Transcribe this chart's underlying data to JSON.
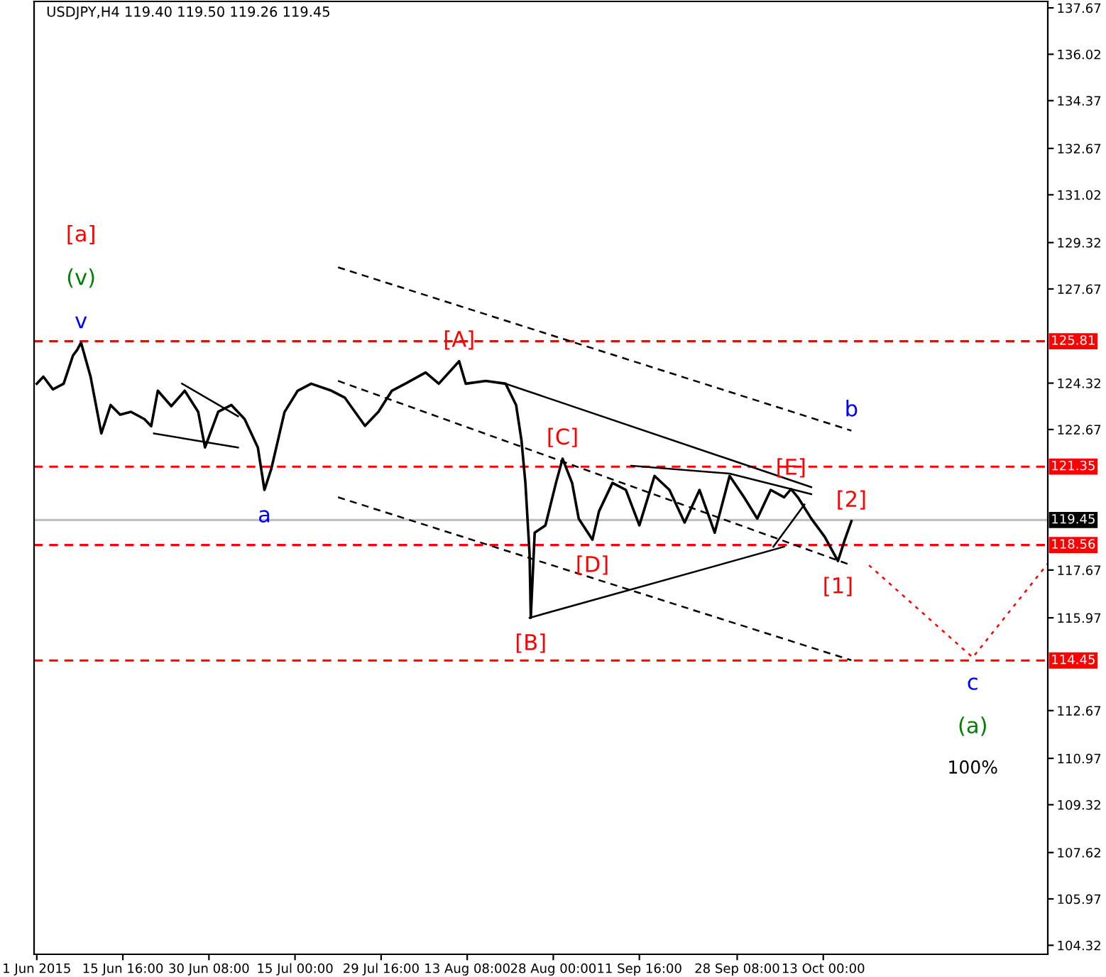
{
  "chart_data": {
    "type": "line",
    "title": "USDJPY,H4 119.40 119.50 119.26 119.45",
    "x": [
      "2015-06-01T00:00",
      "2015-06-02T03:00",
      "2015-06-03T18:00",
      "2015-06-05T14:00",
      "2015-06-07T04:00",
      "2015-06-07T21:00",
      "2015-06-08T13:00",
      "2015-06-10T04:00",
      "2015-06-12T00:00",
      "2015-06-13T14:00",
      "2015-06-15T05:00",
      "2015-06-17T01:00",
      "2015-06-19T08:00",
      "2015-06-20T12:00",
      "2015-06-21T15:00",
      "2015-06-23T22:00",
      "2015-06-26T05:00",
      "2015-06-28T12:00",
      "2015-06-29T16:00",
      "2015-07-01T22:00",
      "2015-07-04T04:00",
      "2015-07-06T10:00",
      "2015-07-08T16:00",
      "2015-07-09T19:00",
      "2015-07-10T23:00",
      "2015-07-13T05:00",
      "2015-07-15T11:00",
      "2015-07-17T18:00",
      "2015-07-21T05:00",
      "2015-07-23T12:00",
      "2015-07-26T22:00",
      "2015-07-29T05:00",
      "2015-07-31T12:00",
      "2015-08-02T19:00",
      "2015-08-06T06:00",
      "2015-08-08T12:00",
      "2015-08-11T23:00",
      "2015-08-13T02:00",
      "2015-08-16T12:00",
      "2015-08-19T21:00",
      "2015-08-21T16:00",
      "2015-08-22T14:00",
      "2015-08-23T06:00",
      "2015-08-23T23:00",
      "2015-08-24T04:00",
      "2015-08-24T20:00",
      "2015-08-26T16:00",
      "2015-08-28T11:00",
      "2015-08-29T14:00",
      "2015-08-31T05:00",
      "2015-09-01T08:00",
      "2015-09-03T16:00",
      "2015-09-04T19:00",
      "2015-09-07T02:00",
      "2015-09-09T09:00",
      "2015-09-11T16:00",
      "2015-09-14T06:00",
      "2015-09-16T19:00",
      "2015-09-19T09:00",
      "2015-09-21T22:00",
      "2015-09-24T12:00",
      "2015-09-27T01:00",
      "2015-09-29T12:00",
      "2015-10-01T18:00",
      "2015-10-04T01:00",
      "2015-10-06T08:00",
      "2015-10-07T12:00",
      "2015-10-08T16:00",
      "2015-10-10T23:00",
      "2015-10-13T06:00",
      "2015-10-15T12:00",
      "2015-10-16T16:00",
      "2015-10-17T19:00"
    ],
    "series": [
      {
        "color": "#000000",
        "values": [
          124.3,
          124.55,
          124.1,
          124.3,
          125.3,
          125.5,
          125.76,
          124.55,
          122.53,
          123.54,
          123.2,
          123.3,
          123.04,
          122.79,
          124.05,
          123.5,
          124.05,
          123.3,
          122.03,
          123.3,
          123.54,
          123.04,
          122.03,
          120.52,
          121.27,
          123.29,
          124.05,
          124.3,
          124.05,
          123.8,
          122.8,
          123.3,
          124.05,
          124.3,
          124.7,
          124.3,
          125.1,
          124.3,
          124.4,
          124.3,
          123.54,
          122.28,
          120.77,
          118.25,
          115.97,
          119.0,
          119.26,
          120.77,
          121.63,
          120.77,
          119.5,
          118.75,
          119.76,
          120.77,
          120.52,
          119.26,
          121.02,
          120.52,
          119.36,
          120.52,
          119.0,
          121.02,
          120.26,
          119.5,
          120.52,
          120.26,
          120.55,
          120.26,
          119.5,
          118.85,
          117.99,
          118.75,
          119.41
        ]
      },
      {
        "x": [
          "2015-07-22T08:00",
          "2015-10-17T19:00"
        ],
        "color": "#000000",
        "line_style": "dashed",
        "values": [
          128.44,
          122.63
        ]
      },
      {
        "x": [
          "2015-07-22T08:00",
          "2015-10-17T19:00"
        ],
        "color": "#000000",
        "line_style": "dashed",
        "values": [
          124.4,
          117.84
        ]
      },
      {
        "x": [
          "2015-07-22T08:00",
          "2015-10-17T19:00"
        ],
        "color": "#000000",
        "line_style": "dashed",
        "values": [
          120.26,
          114.46
        ]
      },
      {
        "x": [
          "2015-08-19T21:00",
          "2015-10-10T23:00"
        ],
        "color": "#000000",
        "line_style": "solid",
        "values": [
          124.3,
          120.62
        ]
      },
      {
        "x": [
          "2015-08-23T23:00",
          "2015-10-06T08:00"
        ],
        "color": "#000000",
        "line_style": "solid",
        "values": [
          115.97,
          118.5
        ]
      },
      {
        "x": [
          "2015-09-10T07:00",
          "2015-09-27T01:00",
          "2015-10-10T23:00"
        ],
        "color": "#000000",
        "line_style": "solid",
        "values": [
          121.38,
          121.1,
          120.37
        ]
      },
      {
        "x": [
          "2015-06-25T18:00",
          "2015-07-05T07:00"
        ],
        "color": "#000000",
        "line_style": "solid",
        "values": [
          124.3,
          123.14
        ]
      },
      {
        "x": [
          "2015-06-20T23:00",
          "2015-07-05T07:00"
        ],
        "color": "#000000",
        "line_style": "solid",
        "values": [
          122.53,
          122.03
        ]
      },
      {
        "x": [
          "2015-10-04T12:00",
          "2015-10-09T19:00"
        ],
        "color": "#000000",
        "line_style": "solid",
        "values": [
          118.5,
          120.0
        ]
      },
      {
        "x": [
          "2015-10-20T19:00",
          "2015-11-07T11:00",
          "2015-11-20T06:00"
        ],
        "color": "#ff0000",
        "line_style": "dotted",
        "values": [
          117.84,
          114.56,
          117.9
        ]
      }
    ],
    "xlim": [
      "2015-05-31T13:00",
      "2015-11-20T06:00"
    ],
    "xticks": [
      {
        "value": "2015-06-01",
        "label": "1 Jun 2015"
      },
      {
        "value": "2015-06-15T16:00",
        "label": "15 Jun 16:00"
      },
      {
        "value": "2015-06-30T08:00",
        "label": "30 Jun 08:00"
      },
      {
        "value": "2015-07-15",
        "label": "15 Jul 00:00"
      },
      {
        "value": "2015-07-29T16:00",
        "label": "29 Jul 16:00"
      },
      {
        "value": "2015-08-13T08:00",
        "label": "13 Aug 08:00"
      },
      {
        "value": "2015-08-28",
        "label": "28 Aug 00:00"
      },
      {
        "value": "2015-09-11T16:00",
        "label": "11 Sep 16:00"
      },
      {
        "value": "2015-09-28T08:00",
        "label": "28 Sep 08:00"
      },
      {
        "value": "2015-10-13",
        "label": "13 Oct 00:00"
      }
    ],
    "ylim": [
      104.0,
      137.9
    ],
    "yticks": [
      137.67,
      136.02,
      134.37,
      132.67,
      131.02,
      129.32,
      127.67,
      124.32,
      122.67,
      117.67,
      115.97,
      112.67,
      110.97,
      109.32,
      107.62,
      105.97,
      104.32
    ],
    "ref_lines": [
      {
        "axis": "y",
        "value": 125.81,
        "label": "125.81",
        "color": "#ff0000",
        "line_style": "dashed"
      },
      {
        "axis": "y",
        "value": 121.35,
        "label": "121.35",
        "color": "#ff0000",
        "line_style": "dashed"
      },
      {
        "axis": "y",
        "value": 119.45,
        "label": "119.45",
        "color": "#c0c0c0",
        "line_style": "solid"
      },
      {
        "axis": "y",
        "value": 118.56,
        "label": "118.56",
        "color": "#ff0000",
        "line_style": "dashed"
      },
      {
        "axis": "y",
        "value": 114.45,
        "label": "114.45",
        "color": "#ff0000",
        "line_style": "dashed"
      }
    ],
    "annotations": [
      {
        "text": "v",
        "x": "2015-06-08T13:00",
        "y": 125.76
      },
      {
        "text": "(v)",
        "x": "2015-06-08T13:00",
        "y": 125.76
      },
      "[a]",
      {
        "text": "a",
        "x": "2015-07-09T19:00",
        "y": 120.52
      },
      {
        "text": "[A]",
        "x": "2015-08-11T23:00",
        "y": 125.1
      },
      {
        "text": "b",
        "x": "2015-10-17T19:00",
        "y": 122.63
      },
      {
        "text": "[C]",
        "x": "2015-08-29T14:00",
        "y": 121.63
      },
      {
        "text": "[E]",
        "x": "2015-10-07T12:00",
        "y": 120.55
      },
      {
        "text": "[2]",
        "x": "2015-10-17T19:00",
        "y": 119.41
      },
      {
        "text": "[D]",
        "x": "2015-09-03T16:00",
        "y": 118.75
      },
      {
        "text": "[1]",
        "x": "2015-10-15T12:00",
        "y": 117.99
      },
      {
        "text": "[B]",
        "x": "2015-08-24T04:00",
        "y": 115.97
      },
      {
        "text": "c",
        "x": "2015-11-07T11:00",
        "y": 114.56
      },
      "(a)",
      "100%"
    ],
    "grid": false,
    "legend": false
  }
}
